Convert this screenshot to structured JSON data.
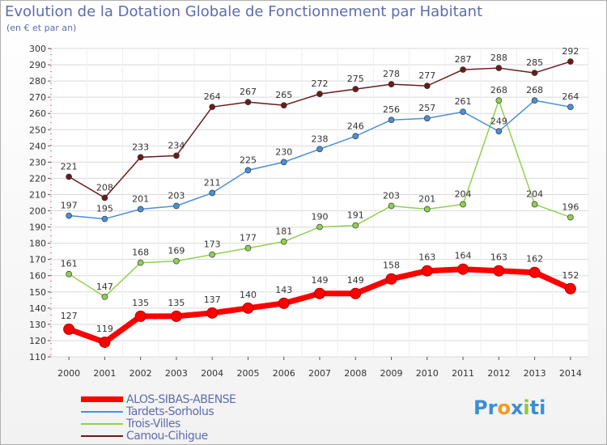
{
  "chart_data": {
    "type": "line",
    "title": "Evolution de la Dotation Globale de Fonctionnement par Habitant",
    "subtitle": "(en € et par an)",
    "xlabel": "",
    "ylabel": "",
    "categories": [
      "2000",
      "2001",
      "2002",
      "2003",
      "2004",
      "2005",
      "2006",
      "2007",
      "2008",
      "2009",
      "2010",
      "2011",
      "2012",
      "2013",
      "2014"
    ],
    "ylim": [
      110,
      300
    ],
    "yticks": [
      110,
      120,
      130,
      140,
      150,
      160,
      170,
      180,
      190,
      200,
      210,
      220,
      230,
      240,
      250,
      260,
      270,
      280,
      290,
      300
    ],
    "grid": true,
    "legend_position": "bottom-left",
    "series": [
      {
        "name": "ALOS-SIBAS-ABENSE",
        "color": "#ff0000",
        "values": [
          127,
          119,
          135,
          135,
          137,
          140,
          143,
          149,
          149,
          158,
          163,
          164,
          163,
          162,
          152
        ]
      },
      {
        "name": "Tardets-Sorholus",
        "color": "#4a90d9",
        "values": [
          197,
          195,
          201,
          203,
          211,
          225,
          230,
          238,
          246,
          256,
          257,
          261,
          249,
          268,
          264
        ]
      },
      {
        "name": "Trois-Villes",
        "color": "#8fd14f",
        "values": [
          161,
          147,
          168,
          169,
          173,
          177,
          181,
          190,
          191,
          203,
          201,
          204,
          268,
          204,
          196
        ]
      },
      {
        "name": "Camou-Cihigue",
        "color": "#6b1a1a",
        "values": [
          221,
          208,
          233,
          234,
          264,
          267,
          265,
          272,
          275,
          278,
          277,
          287,
          288,
          285,
          292
        ]
      }
    ]
  },
  "logo": {
    "parts": [
      "Pr",
      "o",
      "x",
      "i",
      "ti"
    ],
    "colors": [
      "#3b8fd1",
      "#f29a1f",
      "#3b8fd1",
      "#8dc63f",
      "#3b8fd1"
    ]
  }
}
